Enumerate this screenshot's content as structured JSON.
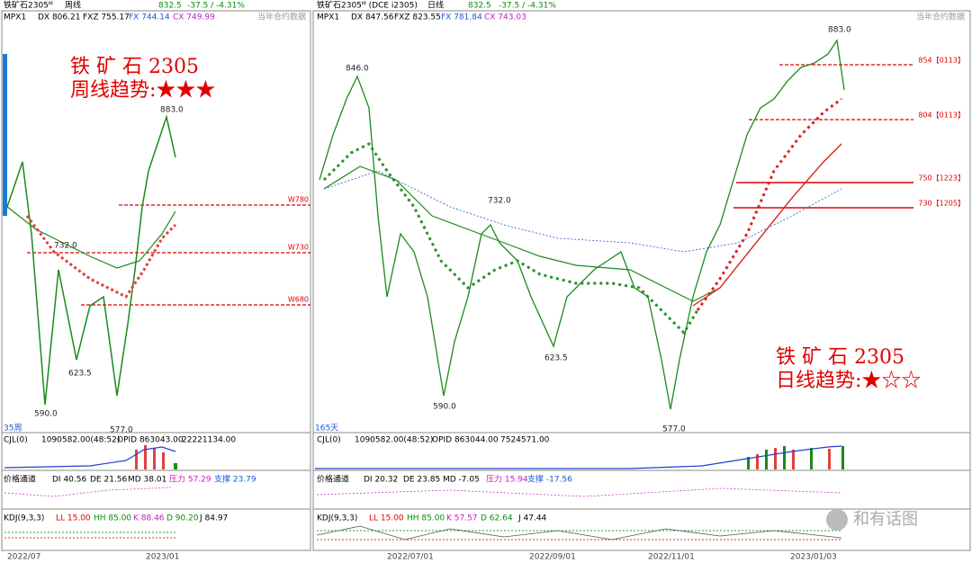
{
  "left": {
    "header": {
      "symbol": "铁矿石2305ᴹ",
      "period": "周线",
      "price": "832.5",
      "change": "-37.5 / -4.31%"
    },
    "indicator": {
      "name": "MPX1",
      "dx": "DX 806.21",
      "fxz": "FXZ 755.17",
      "fx": "FX 744.14",
      "cx": "CX 749.99",
      "corner": "当年合约数据"
    },
    "annotation": {
      "title": "铁 矿 石  2305",
      "trend": "周线趋势:★★★"
    },
    "price_labels": [
      "883.0",
      "732.0",
      "623.5",
      "590.0",
      "577.0"
    ],
    "levels": [
      "W780",
      "W730",
      "W680"
    ],
    "bar_count": "35周",
    "volume": {
      "name": "CJL(0)",
      "value": "1090582.00(48:52)",
      "opid": "OPID 863043.00",
      "total": "22221134.00"
    },
    "channel": {
      "name": "价格通道",
      "di": "DI 40.56",
      "de": "DE 21.56",
      "md": "MD 38.01",
      "pressure": "压力 57.29",
      "support": "支撑 23.79"
    },
    "kdj": {
      "name": "KDJ(9,3,3)",
      "ll": "LL 15.00",
      "hh": "HH 85.00",
      "k": "K 88.46",
      "d": "D 90.20",
      "j": "J 84.97"
    },
    "dates": [
      "2022/07",
      "2023/01"
    ]
  },
  "right": {
    "header": {
      "symbol": "铁矿石2305ᴹ (DCE i2305)",
      "period": "日线",
      "price": "832.5",
      "change": "-37.5 / -4.31%"
    },
    "indicator": {
      "name": "MPX1",
      "dx": "DX 847.56",
      "fxz": "FXZ 823.55",
      "fx": "FX 781.84",
      "cx": "CX 743.03",
      "corner": "当年合约数据"
    },
    "annotation": {
      "title": "铁  矿  石    2305",
      "trend": "日线趋势:★☆☆"
    },
    "price_labels": [
      "883.0",
      "846.0",
      "732.0",
      "623.5",
      "590.0",
      "577.0"
    ],
    "levels": [
      "854【0113】",
      "804【0113】",
      "750【1223】",
      "730【1205】"
    ],
    "bar_count": "165天",
    "volume": {
      "name": "CJL(0)",
      "value": "1090582.00(48:52)",
      "opid": "OPID 863044.00",
      "total": "7524571.00"
    },
    "channel": {
      "name": "价格通道",
      "di": "DI 20.32",
      "de": "DE 23.85",
      "md": "MD -7.05",
      "pressure": "压力 15.94",
      "support": "支撑 -17.56"
    },
    "kdj": {
      "name": "KDJ(9,3,3)",
      "ll": "LL 15.00",
      "hh": "HH 85.00",
      "k": "K 57.57",
      "d": "D 62.64",
      "j": "J 47.44"
    },
    "dates": [
      "2022/07/01",
      "2022/09/01",
      "2022/11/01",
      "2023/01/03"
    ]
  },
  "watermark": "和有话图"
}
